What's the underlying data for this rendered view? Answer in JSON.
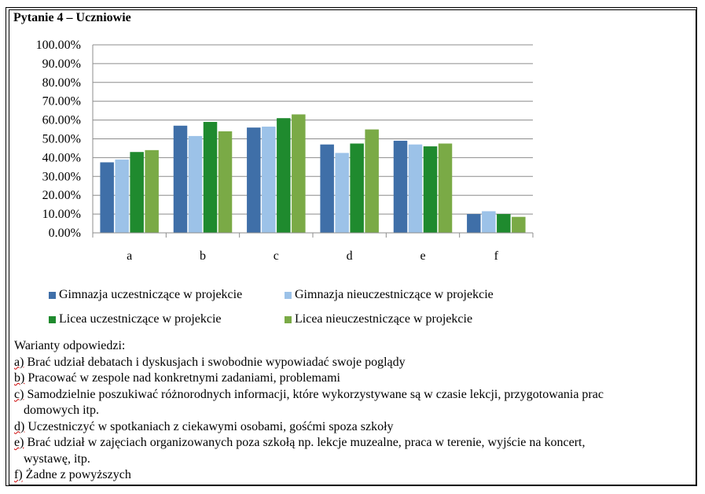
{
  "page_title": "Pytanie 4 – Uczniowie",
  "chart_data": {
    "type": "bar",
    "categories": [
      "a",
      "b",
      "c",
      "d",
      "e",
      "f"
    ],
    "ylim": [
      0,
      100
    ],
    "y_ticks": [
      "0.00%",
      "10.00%",
      "20.00%",
      "30.00%",
      "40.00%",
      "50.00%",
      "60.00%",
      "70.00%",
      "80.00%",
      "90.00%",
      "100.00%"
    ],
    "grid": true,
    "legend_position": "bottom",
    "series": [
      {
        "name": "Gimnazja uczestniczące w projekcie",
        "color": "#3f6fa8",
        "values": [
          37.5,
          57,
          56,
          47,
          49,
          10
        ]
      },
      {
        "name": "Gimnazja nieuczestniczące w projekcie",
        "color": "#9cc2e8",
        "values": [
          39,
          51.5,
          56.5,
          42.5,
          47,
          11.5
        ]
      },
      {
        "name": "Licea uczestniczące w projekcie",
        "color": "#1f8a2e",
        "values": [
          43,
          59,
          61,
          47.5,
          46,
          10
        ]
      },
      {
        "name": "Licea nieuczestniczące w projekcie",
        "color": "#7aaa46",
        "values": [
          44,
          54,
          63,
          55,
          47.5,
          8.5
        ]
      }
    ]
  },
  "answers": {
    "header": "Warianty odpowiedzi:",
    "items": [
      {
        "key": "a)",
        "lines": [
          "Brać udział debatach i dyskusjach i swobodnie wypowiadać swoje poglądy"
        ]
      },
      {
        "key": "b)",
        "lines": [
          "Pracować w zespole nad konkretnymi zadaniami, problemami"
        ]
      },
      {
        "key": "c)",
        "lines": [
          "Samodzielnie poszukiwać różnorodnych informacji, które wykorzystywane są w czasie lekcji, przygotowania prac",
          "domowych itp."
        ]
      },
      {
        "key": "d)",
        "lines": [
          "Uczestniczyć w spotkaniach z ciekawymi osobami, gośćmi spoza szkoły"
        ]
      },
      {
        "key": "e)",
        "lines": [
          "Brać udział w zajęciach organizowanych poza szkołą np. lekcje muzealne, praca w terenie, wyjście na koncert,",
          "wystawę, itp."
        ]
      },
      {
        "key": "f)",
        "lines": [
          "Żadne z powyższych"
        ]
      }
    ]
  }
}
